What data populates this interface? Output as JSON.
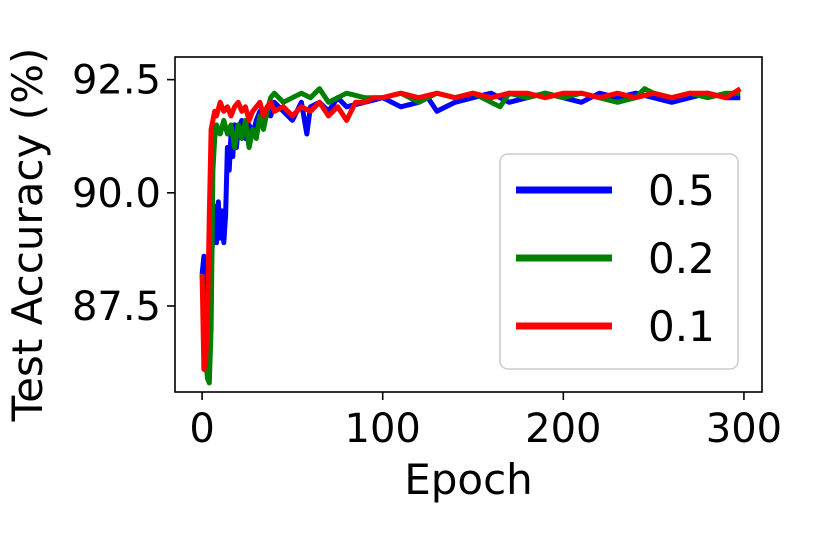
{
  "chart_data": {
    "type": "line",
    "xlabel": "Epoch",
    "ylabel": "Test Accuracy (%)",
    "xlim": [
      -15,
      310
    ],
    "ylim": [
      85.6,
      93.0
    ],
    "xticks": [
      0,
      100,
      200,
      300
    ],
    "xtick_labels": [
      "0",
      "100",
      "200",
      "300"
    ],
    "yticks": [
      87.5,
      90.0,
      92.5
    ],
    "ytick_labels": [
      "87.5",
      "90.0",
      "92.5"
    ],
    "grid": false,
    "legend_position": "center-right",
    "series": [
      {
        "name": "0.5",
        "color": "#0000ff",
        "x": [
          0,
          1,
          2,
          3,
          4,
          5,
          6,
          7,
          8,
          9,
          10,
          11,
          12,
          13,
          14,
          15,
          16,
          17,
          18,
          19,
          20,
          22,
          24,
          26,
          28,
          30,
          32,
          34,
          36,
          38,
          40,
          45,
          50,
          55,
          58,
          60,
          65,
          70,
          75,
          80,
          90,
          100,
          110,
          120,
          125,
          130,
          140,
          150,
          160,
          170,
          180,
          190,
          200,
          210,
          220,
          230,
          240,
          250,
          260,
          270,
          280,
          290,
          298
        ],
        "y": [
          88.2,
          88.6,
          88.0,
          86.6,
          86.2,
          88.5,
          89.0,
          89.7,
          88.9,
          89.8,
          89.0,
          89.6,
          88.9,
          89.5,
          91.0,
          90.5,
          91.3,
          90.8,
          91.5,
          91.0,
          91.4,
          91.6,
          91.2,
          91.5,
          91.3,
          91.6,
          91.8,
          91.5,
          91.9,
          91.7,
          92.0,
          91.8,
          91.6,
          92.0,
          91.3,
          91.9,
          92.0,
          91.8,
          92.1,
          91.9,
          92.0,
          92.1,
          91.9,
          92.0,
          92.1,
          91.8,
          92.0,
          92.1,
          92.2,
          92.0,
          92.1,
          92.2,
          92.1,
          92.0,
          92.2,
          92.1,
          92.2,
          92.1,
          92.0,
          92.1,
          92.2,
          92.1,
          92.1
        ]
      },
      {
        "name": "0.2",
        "color": "#008000",
        "x": [
          0,
          2,
          3,
          4,
          5,
          6,
          7,
          8,
          9,
          10,
          12,
          14,
          16,
          18,
          20,
          22,
          24,
          26,
          28,
          30,
          32,
          34,
          36,
          38,
          40,
          45,
          50,
          55,
          60,
          65,
          70,
          80,
          90,
          100,
          110,
          120,
          130,
          140,
          150,
          160,
          165,
          170,
          180,
          190,
          200,
          210,
          220,
          230,
          240,
          245,
          250,
          260,
          270,
          280,
          290,
          298
        ],
        "y": [
          88.2,
          86.3,
          85.9,
          85.8,
          87.0,
          90.5,
          91.2,
          91.5,
          91.4,
          91.3,
          91.6,
          91.3,
          91.5,
          91.0,
          91.5,
          91.2,
          91.6,
          91.0,
          91.4,
          91.2,
          91.7,
          91.4,
          91.8,
          92.1,
          92.2,
          92.0,
          92.1,
          92.2,
          92.1,
          92.3,
          92.0,
          92.2,
          92.1,
          92.1,
          92.2,
          92.0,
          92.2,
          92.1,
          92.2,
          92.0,
          91.9,
          92.2,
          92.1,
          92.2,
          92.1,
          92.2,
          92.1,
          92.0,
          92.1,
          92.3,
          92.2,
          92.1,
          92.2,
          92.1,
          92.2,
          92.2
        ]
      },
      {
        "name": "0.1",
        "color": "#ff0000",
        "x": [
          0,
          1,
          2,
          3,
          4,
          5,
          6,
          7,
          8,
          10,
          12,
          14,
          16,
          18,
          20,
          22,
          24,
          26,
          28,
          30,
          32,
          34,
          36,
          38,
          40,
          45,
          50,
          55,
          60,
          65,
          70,
          75,
          80,
          85,
          90,
          95,
          100,
          110,
          120,
          130,
          140,
          150,
          160,
          170,
          180,
          190,
          200,
          210,
          220,
          230,
          240,
          250,
          260,
          270,
          280,
          290,
          298
        ],
        "y": [
          88.2,
          86.1,
          86.3,
          87.2,
          89.5,
          91.4,
          91.6,
          91.8,
          91.7,
          92.0,
          91.8,
          91.9,
          91.7,
          91.9,
          92.0,
          91.8,
          91.9,
          91.6,
          91.8,
          91.9,
          92.0,
          91.7,
          91.9,
          92.0,
          91.8,
          91.9,
          91.7,
          91.9,
          91.8,
          92.0,
          91.7,
          91.9,
          91.6,
          92.0,
          92.0,
          92.1,
          92.1,
          92.2,
          92.1,
          92.2,
          92.1,
          92.2,
          92.1,
          92.2,
          92.2,
          92.1,
          92.2,
          92.2,
          92.1,
          92.2,
          92.1,
          92.2,
          92.1,
          92.2,
          92.2,
          92.1,
          92.3
        ]
      }
    ]
  }
}
